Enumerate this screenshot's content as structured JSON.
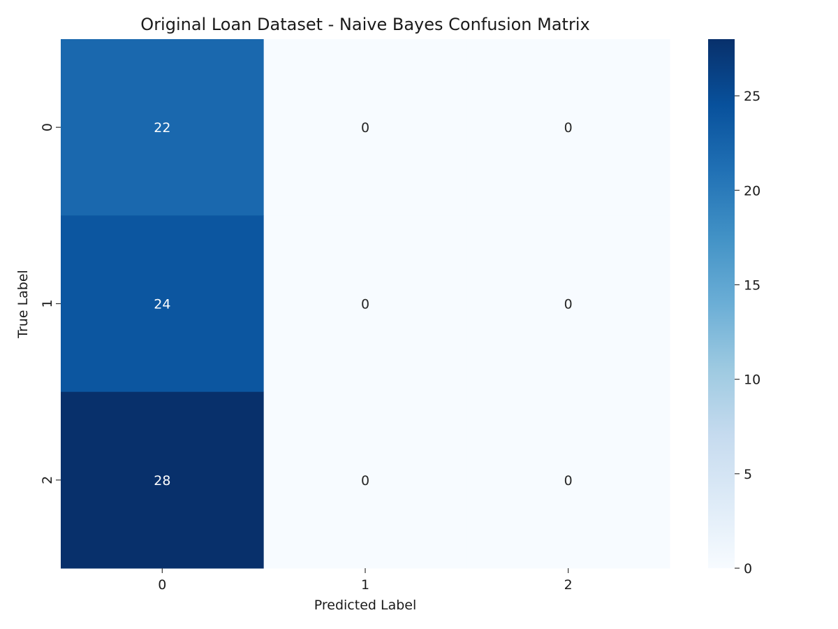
{
  "chart_data": {
    "type": "heatmap",
    "title": "Original Loan Dataset - Naive Bayes Confusion Matrix",
    "xlabel": "Predicted Label",
    "ylabel": "True Label",
    "x_categories": [
      "0",
      "1",
      "2"
    ],
    "y_categories": [
      "0",
      "1",
      "2"
    ],
    "values": [
      [
        22,
        0,
        0
      ],
      [
        24,
        0,
        0
      ],
      [
        28,
        0,
        0
      ]
    ],
    "colormap": "Blues",
    "colorbar": {
      "range": [
        0,
        28
      ],
      "ticks": [
        0,
        5,
        10,
        15,
        20,
        25
      ]
    },
    "colors": {
      "low": "#f7fbff",
      "high": "#08306b"
    },
    "annotation_colors": {
      "dark_cell": "#ffffff",
      "light_cell": "#262626"
    }
  }
}
